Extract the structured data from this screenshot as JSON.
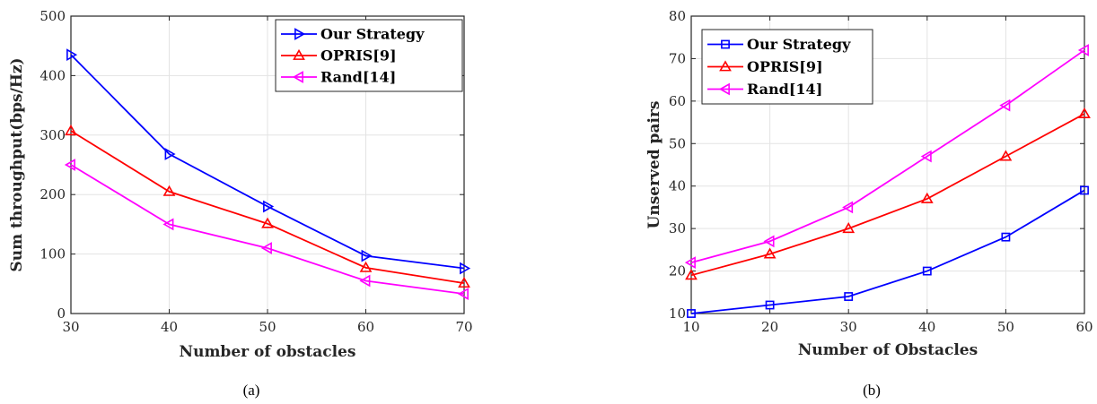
{
  "chart_data": [
    {
      "type": "line",
      "caption": "(a)",
      "xlabel": "Number of obstacles",
      "ylabel": "Sum throughput(bps/Hz)",
      "x": [
        30,
        40,
        50,
        60,
        70
      ],
      "xlim": [
        30,
        70
      ],
      "ylim": [
        0,
        500
      ],
      "xticks": [
        30,
        40,
        50,
        60,
        70
      ],
      "yticks": [
        0,
        100,
        200,
        300,
        400,
        500
      ],
      "grid": true,
      "legend_position": "top-right",
      "series": [
        {
          "name": "Our Strategy",
          "color": "#0000ff",
          "marker": "triangle-right",
          "values": [
            435,
            268,
            180,
            97,
            76
          ]
        },
        {
          "name": "OPRIS[9]",
          "color": "#ff0000",
          "marker": "triangle-up",
          "values": [
            307,
            205,
            151,
            77,
            51
          ]
        },
        {
          "name": "Rand[14]",
          "color": "#ff00ff",
          "marker": "triangle-left",
          "values": [
            250,
            150,
            110,
            55,
            33
          ]
        }
      ]
    },
    {
      "type": "line",
      "caption": "(b)",
      "xlabel": "Number of Obstacles",
      "ylabel": "Unserved pairs",
      "x": [
        10,
        20,
        30,
        40,
        50,
        60
      ],
      "xlim": [
        10,
        60
      ],
      "ylim": [
        10,
        80
      ],
      "xticks": [
        10,
        20,
        30,
        40,
        50,
        60
      ],
      "yticks": [
        10,
        20,
        30,
        40,
        50,
        60,
        70,
        80
      ],
      "grid": true,
      "legend_position": "top-left",
      "series": [
        {
          "name": "Our Strategy",
          "color": "#0000ff",
          "marker": "square",
          "values": [
            10,
            12,
            14,
            20,
            28,
            39
          ]
        },
        {
          "name": "OPRIS[9]",
          "color": "#ff0000",
          "marker": "triangle-up",
          "values": [
            19,
            24,
            30,
            37,
            47,
            57
          ]
        },
        {
          "name": "Rand[14]",
          "color": "#ff00ff",
          "marker": "triangle-left",
          "values": [
            22,
            27,
            35,
            47,
            59,
            72
          ]
        }
      ]
    }
  ]
}
